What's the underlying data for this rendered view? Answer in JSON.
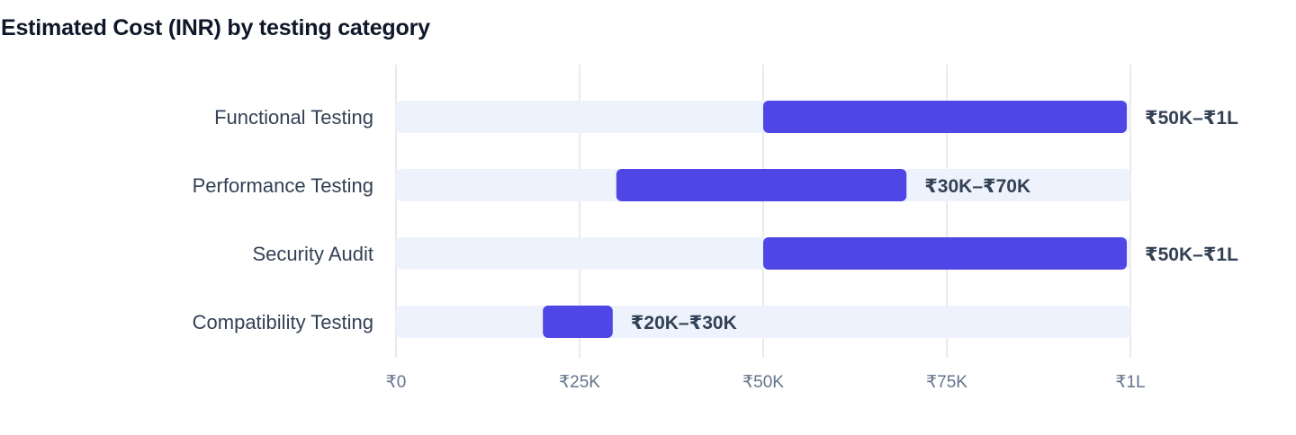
{
  "chart_data": {
    "type": "bar",
    "orientation": "horizontal",
    "title": "Estimated Cost (INR) by testing category",
    "categories": [
      "Functional Testing",
      "Performance Testing",
      "Security Audit",
      "Compatibility Testing"
    ],
    "ranges": [
      {
        "category": "Functional Testing",
        "low": 50000,
        "high": 100000,
        "label": "₹50K–₹1L"
      },
      {
        "category": "Performance Testing",
        "low": 30000,
        "high": 70000,
        "label": "₹30K–₹70K"
      },
      {
        "category": "Security Audit",
        "low": 50000,
        "high": 100000,
        "label": "₹50K–₹1L"
      },
      {
        "category": "Compatibility Testing",
        "low": 20000,
        "high": 30000,
        "label": "₹20K–₹30K"
      }
    ],
    "xlim": [
      0,
      100000
    ],
    "x_ticks": [
      {
        "value": 0,
        "label": "₹0"
      },
      {
        "value": 25000,
        "label": "₹25K"
      },
      {
        "value": 50000,
        "label": "₹50K"
      },
      {
        "value": 75000,
        "label": "₹75K"
      },
      {
        "value": 100000,
        "label": "₹1L"
      }
    ],
    "grid": "vertical",
    "colors": {
      "bar": "#4f46e5",
      "track": "#eef2fd",
      "grid": "#e2e4e8"
    }
  }
}
